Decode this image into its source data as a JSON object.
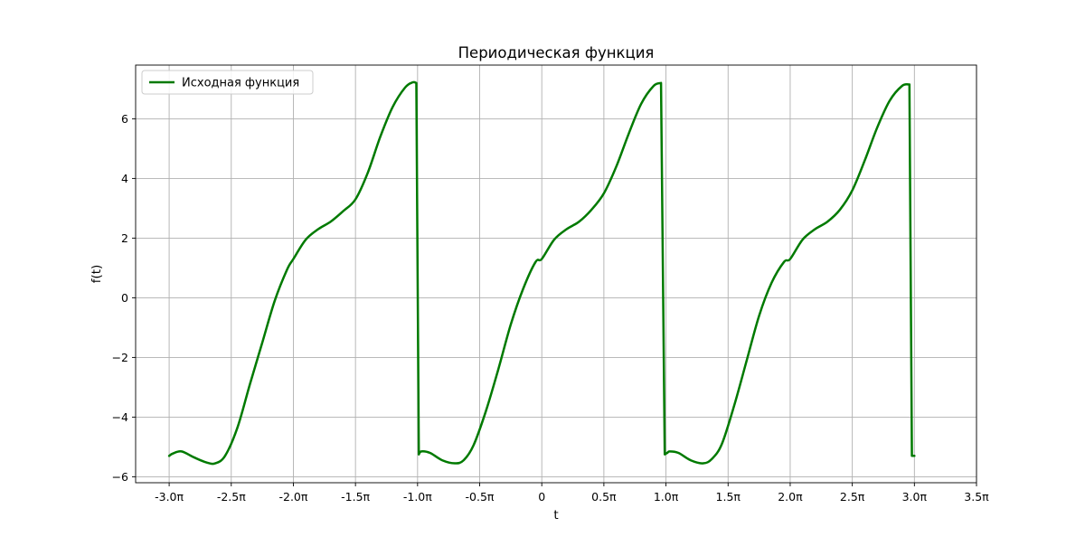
{
  "chart_data": {
    "type": "line",
    "title": "Периодическая функция",
    "xlabel": "t",
    "ylabel": "f(t)",
    "x_unit": "π",
    "xlim": [
      -3.27,
      3.5
    ],
    "ylim": [
      -6.2,
      7.8
    ],
    "x_ticks": [
      -3.0,
      -2.5,
      -2.0,
      -1.5,
      -1.0,
      -0.5,
      0,
      0.5,
      1.0,
      1.5,
      2.0,
      2.5,
      3.0,
      3.5
    ],
    "x_tick_labels": [
      "-3.0π",
      "-2.5π",
      "-2.0π",
      "-1.5π",
      "-1.0π",
      "-0.5π",
      "0",
      "0.5π",
      "1.0π",
      "1.5π",
      "2.0π",
      "2.5π",
      "3.0π",
      "3.5π"
    ],
    "y_ticks": [
      -6,
      -4,
      -2,
      0,
      2,
      4,
      6
    ],
    "y_tick_labels": [
      "−6",
      "−4",
      "−2",
      "0",
      "2",
      "4",
      "6"
    ],
    "grid": true,
    "legend_position": "top-left",
    "series": [
      {
        "name": "Исходная функция",
        "color": "#007a00",
        "x": [
          -3.0,
          -2.97,
          -2.9,
          -2.8,
          -2.7,
          -2.63,
          -2.55,
          -2.45,
          -2.35,
          -2.25,
          -2.15,
          -2.05,
          -2.0,
          -1.9,
          -1.8,
          -1.7,
          -1.6,
          -1.5,
          -1.4,
          -1.3,
          -1.2,
          -1.1,
          -1.04,
          -1.01,
          -0.99,
          -0.97,
          -0.9,
          -0.8,
          -0.7,
          -0.63,
          -0.55,
          -0.45,
          -0.35,
          -0.25,
          -0.15,
          -0.05,
          0.0,
          0.1,
          0.2,
          0.3,
          0.4,
          0.5,
          0.6,
          0.7,
          0.8,
          0.9,
          0.96,
          0.99,
          1.01,
          1.03,
          1.1,
          1.2,
          1.3,
          1.37,
          1.45,
          1.55,
          1.65,
          1.75,
          1.85,
          1.95,
          2.0,
          2.1,
          2.2,
          2.3,
          2.4,
          2.5,
          2.6,
          2.7,
          2.8,
          2.9,
          2.96,
          2.98,
          3.0
        ],
        "y": [
          -5.3,
          -5.22,
          -5.15,
          -5.35,
          -5.52,
          -5.55,
          -5.3,
          -4.35,
          -2.9,
          -1.5,
          -0.1,
          0.95,
          1.3,
          1.95,
          2.3,
          2.55,
          2.9,
          3.3,
          4.2,
          5.4,
          6.4,
          7.05,
          7.22,
          7.2,
          -5.25,
          -5.15,
          -5.2,
          -5.45,
          -5.55,
          -5.45,
          -4.95,
          -3.8,
          -2.4,
          -0.9,
          0.3,
          1.2,
          1.3,
          1.95,
          2.3,
          2.55,
          2.95,
          3.5,
          4.4,
          5.5,
          6.5,
          7.1,
          7.2,
          -5.25,
          -5.2,
          -5.15,
          -5.2,
          -5.45,
          -5.55,
          -5.4,
          -4.9,
          -3.6,
          -2.1,
          -0.6,
          0.5,
          1.2,
          1.3,
          1.95,
          2.3,
          2.55,
          2.95,
          3.6,
          4.6,
          5.7,
          6.6,
          7.1,
          7.15,
          -5.3,
          -5.3
        ]
      }
    ]
  }
}
